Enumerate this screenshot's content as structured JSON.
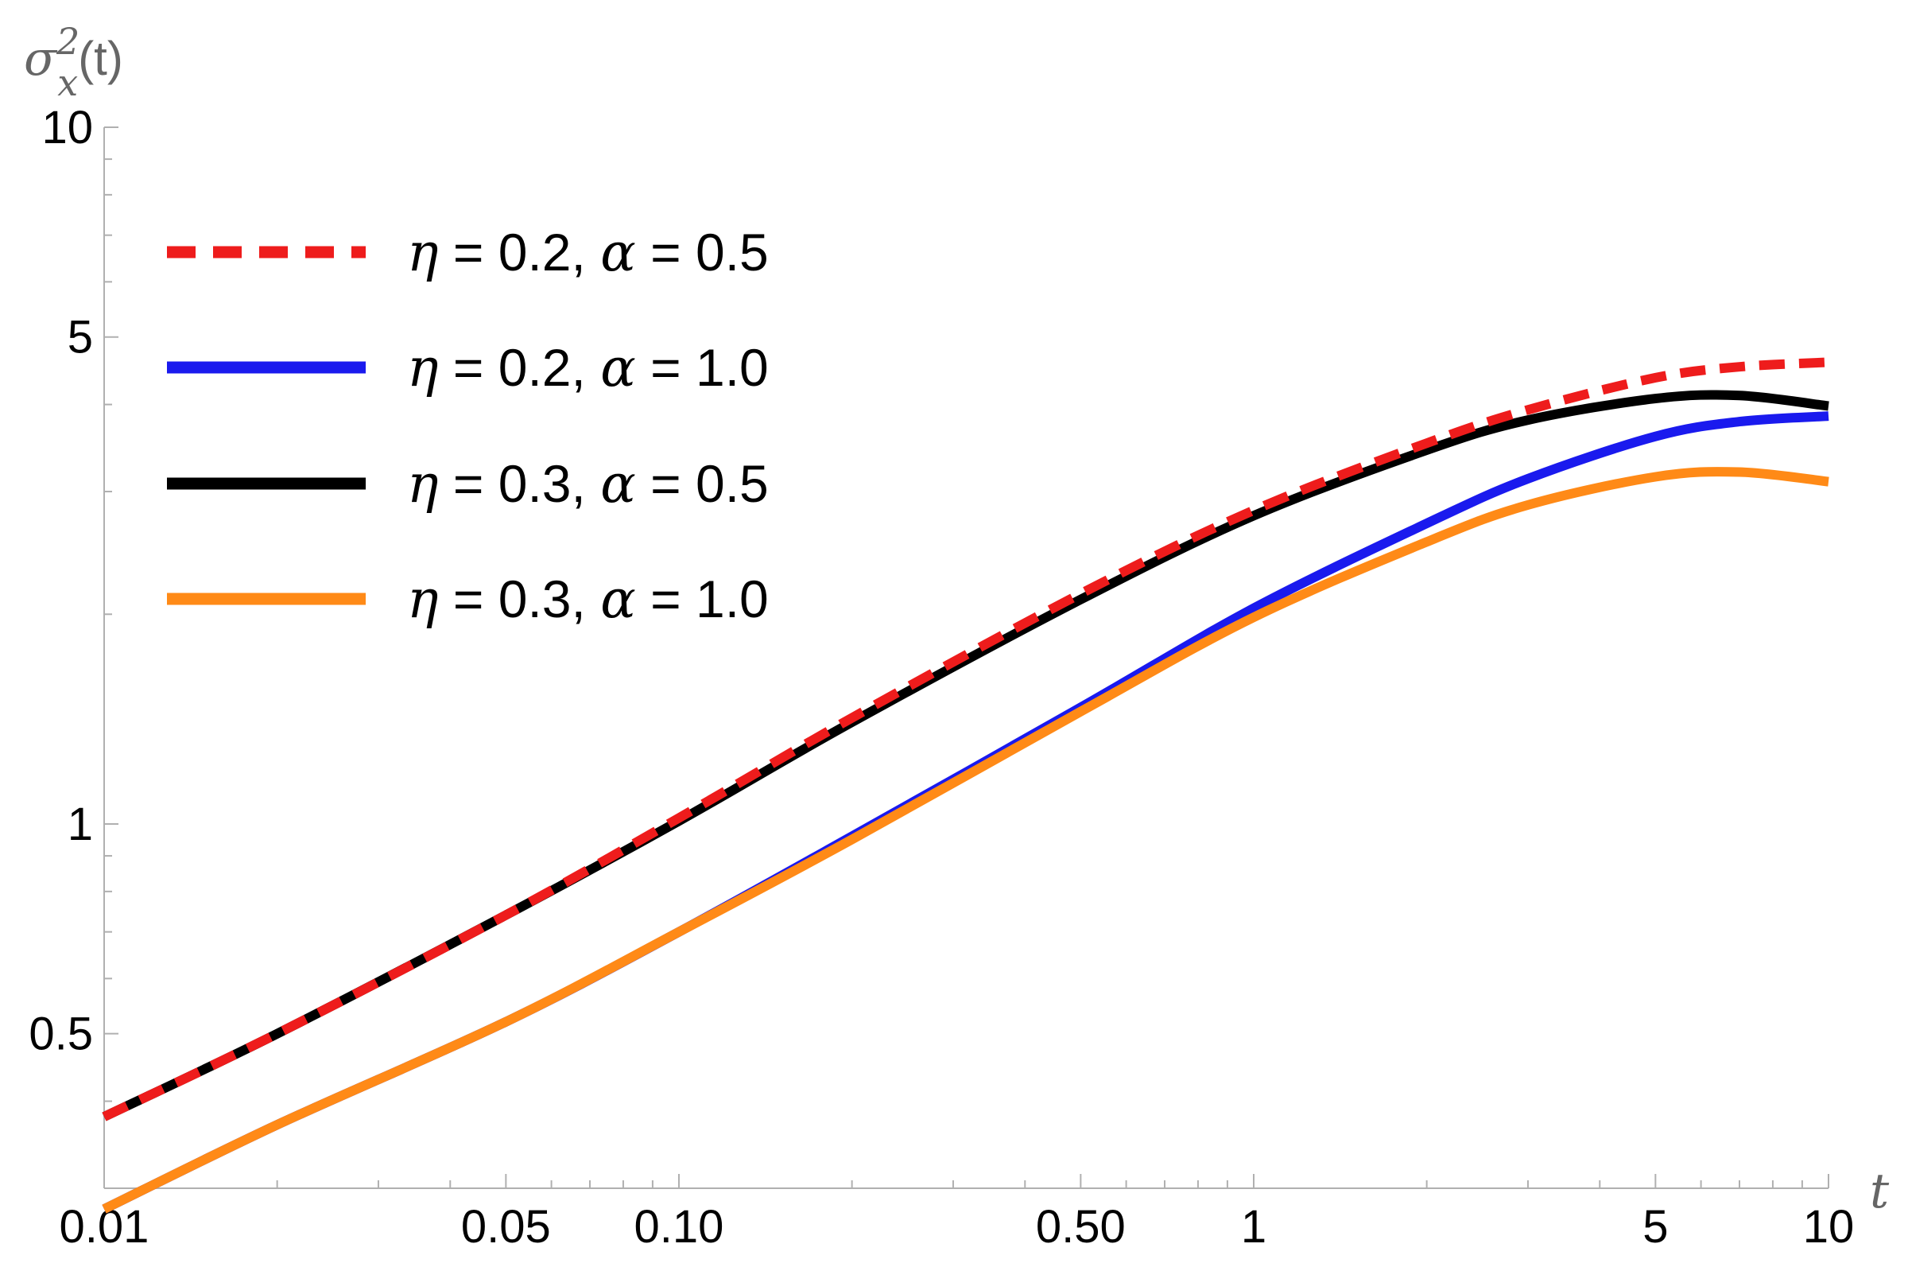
{
  "chart_data": {
    "type": "line",
    "title": "",
    "xlabel": "t",
    "ylabel": "σx²(t)",
    "ylabel_parts": {
      "symbol": "σ",
      "subscript": "x",
      "superscript": "2",
      "arg": "(t)"
    },
    "xscale": "log",
    "yscale": "log",
    "xlim": [
      0.01,
      10
    ],
    "ylim": [
      0.3,
      10
    ],
    "xticks": [
      {
        "value": 0.01,
        "label": "0.01"
      },
      {
        "value": 0.05,
        "label": "0.05"
      },
      {
        "value": 0.1,
        "label": "0.10"
      },
      {
        "value": 0.5,
        "label": "0.50"
      },
      {
        "value": 1,
        "label": "1"
      },
      {
        "value": 5,
        "label": "5"
      },
      {
        "value": 10,
        "label": "10"
      }
    ],
    "yticks": [
      {
        "value": 0.5,
        "label": "0.5"
      },
      {
        "value": 1,
        "label": "1"
      },
      {
        "value": 5,
        "label": "5"
      },
      {
        "value": 10,
        "label": "10"
      }
    ],
    "x": [
      0.01,
      0.02,
      0.05,
      0.1,
      0.2,
      0.5,
      1,
      2,
      3,
      5,
      7,
      10
    ],
    "series": [
      {
        "name": "η = 0.2, α = 0.5",
        "eta": "0.2",
        "alpha": "0.5",
        "color": "#ee1c1c",
        "dash": "dashed",
        "values": [
          0.38,
          0.5,
          0.74,
          1.02,
          1.42,
          2.14,
          2.82,
          3.52,
          3.93,
          4.37,
          4.53,
          4.6
        ]
      },
      {
        "name": "η = 0.2, α = 1.0",
        "eta": "0.2",
        "alpha": "1.0",
        "color": "#1a1aee",
        "dash": "solid",
        "values": [
          0.28,
          0.37,
          0.52,
          0.7,
          0.96,
          1.47,
          2.04,
          2.7,
          3.13,
          3.6,
          3.78,
          3.85
        ]
      },
      {
        "name": "η = 0.3, α = 0.5",
        "eta": "0.3",
        "alpha": "0.5",
        "color": "#000000",
        "dash": "solid",
        "values": [
          0.38,
          0.5,
          0.74,
          1.01,
          1.4,
          2.1,
          2.77,
          3.44,
          3.8,
          4.08,
          4.12,
          3.98
        ]
      },
      {
        "name": "η = 0.3, α = 1.0",
        "eta": "0.3",
        "alpha": "1.0",
        "color": "#ff8a17",
        "dash": "solid",
        "values": [
          0.28,
          0.37,
          0.52,
          0.7,
          0.95,
          1.45,
          1.98,
          2.54,
          2.87,
          3.15,
          3.2,
          3.1
        ]
      }
    ],
    "legend": {
      "position": "top-left"
    },
    "grid": false
  }
}
